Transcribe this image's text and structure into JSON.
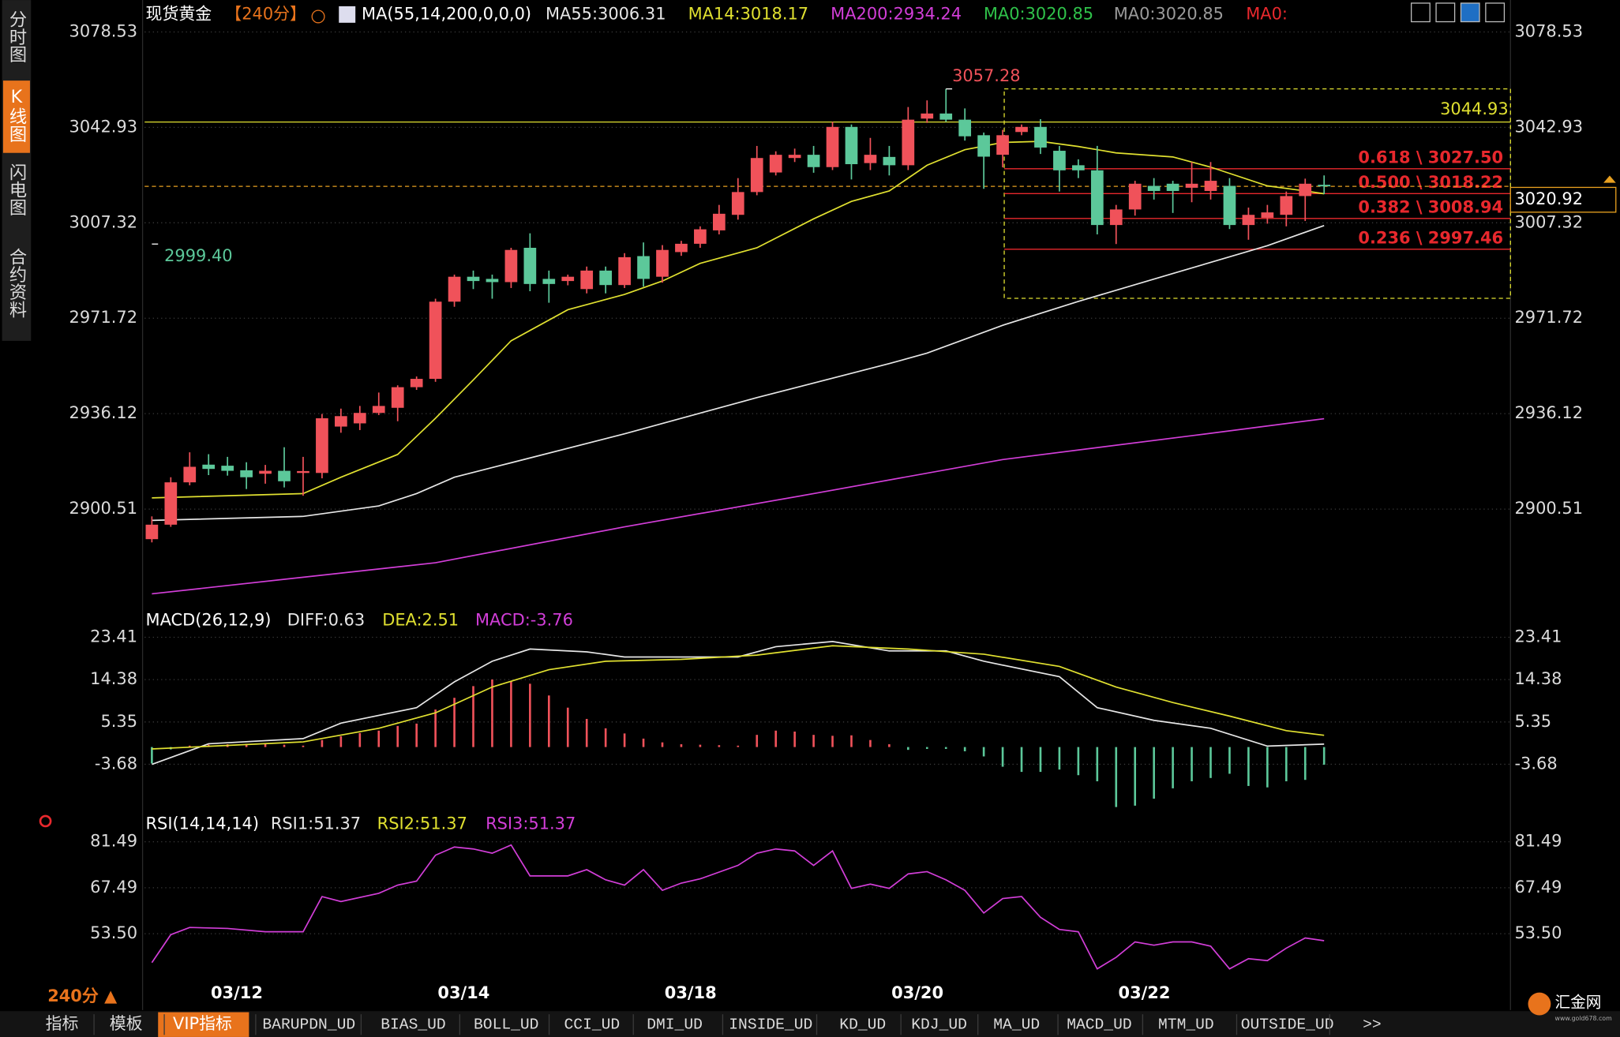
{
  "ui": {
    "sidebar": [
      "分时图",
      "K线图",
      "闪电图",
      "合约资料"
    ],
    "bottom_period": "240分 ▲",
    "tabs": [
      "指标",
      "模板",
      "VIP指标",
      "BARUPDN_UD",
      "BIAS_UD",
      "BOLL_UD",
      "CCI_UD",
      "DMI_UD",
      "INSIDE_UD",
      "KD_UD",
      "KDJ_UD",
      "MA_UD",
      "MACD_UD",
      "MTM_UD",
      "OUTSIDE_UD",
      ">>"
    ],
    "logo": "汇金网",
    "logo_url": "www.gold678.com"
  },
  "chart_data": [
    {
      "type": "candlestick",
      "title": "现货黄金",
      "period": "【240分】",
      "ma_label": "MA(55,14,200,0,0,0)",
      "up_color": "#f0525a",
      "down_color": "#5cc89a",
      "categories": [
        null,
        null,
        null,
        null,
        "03/12",
        null,
        null,
        null,
        null,
        null,
        null,
        null,
        null,
        null,
        null,
        null,
        "03/14",
        null,
        null,
        null,
        null,
        null,
        null,
        null,
        null,
        null,
        null,
        null,
        "03/18",
        null,
        null,
        null,
        null,
        null,
        null,
        null,
        null,
        null,
        null,
        null,
        "03/20",
        null,
        null,
        null,
        null,
        null,
        null,
        null,
        null,
        null,
        null,
        null,
        "03/22",
        null,
        null,
        null,
        null,
        null,
        null,
        null,
        null,
        null,
        null
      ],
      "open": [
        2889.3,
        2894.7,
        2910.5,
        2917.1,
        2916.7,
        2915,
        2913.7,
        2914.8,
        2914,
        2914,
        2931.3,
        2932.5,
        2936.4,
        2938.3,
        2946,
        2949.1,
        2977.9,
        2987.2,
        2986.4,
        2985.2,
        2998,
        2986.4,
        2985.6,
        2982.6,
        2989.5,
        2984.1,
        2994.9,
        2987.2,
        2996.4,
        2999.5,
        3004.5,
        3010.3,
        3018.8,
        3026.1,
        3031.5,
        3032.7,
        3028.1,
        3043.1,
        3029.6,
        3031.9,
        3028.8,
        3046.2,
        3048.1,
        3045.8,
        3040,
        3032.7,
        3041.2,
        3043.1,
        3034.2,
        3028.8,
        3026.9,
        3006.5,
        3012.3,
        3021.1,
        3021.9,
        3020.4,
        3019.2,
        3021.1,
        3006.5,
        3009.2,
        3010.3,
        3017.3,
        3021.5
      ],
      "high": [
        2897.8,
        2912.4,
        2921.7,
        2921,
        2920,
        2918,
        2917,
        2923.6,
        2920,
        2936,
        2938,
        2939,
        2944,
        2946.7,
        2950,
        2979,
        2988,
        2989.5,
        2988,
        2998,
        3003.4,
        2989.5,
        2988,
        2991,
        2991,
        2996,
        3000,
        2999,
        3000.6,
        3006,
        3014,
        3024,
        3036,
        3034,
        3035,
        3036,
        3045,
        3044,
        3039,
        3036,
        3050.5,
        3053,
        3057.28,
        3050,
        3041,
        3042,
        3044,
        3046,
        3036,
        3031,
        3036,
        3014,
        3023,
        3024,
        3023,
        3030,
        3030,
        3024,
        3013,
        3014,
        3019,
        3023.8,
        3025
      ],
      "low": [
        2888.1,
        2893.9,
        2909.4,
        2913.2,
        2913,
        2908,
        2910,
        2908.6,
        2905.5,
        2912,
        2929,
        2930,
        2935.6,
        2933.3,
        2945,
        2948,
        2976,
        2982.6,
        2979,
        2983,
        2981.8,
        2977.5,
        2984,
        2981,
        2981,
        2983,
        2983.5,
        2985,
        2995,
        2998,
        3003,
        3008.5,
        3017.6,
        3025,
        3030,
        3026,
        3027,
        3023.5,
        3027,
        3025,
        3027,
        3044.6,
        3045,
        3038,
        3020,
        3028,
        3040,
        3033,
        3019,
        3024,
        3003,
        2999.4,
        3010,
        3016,
        3011,
        3015,
        3016,
        3005,
        3001,
        3007,
        3006,
        3008,
        3018
      ],
      "close": [
        2894.7,
        2910.5,
        2916.3,
        2915.5,
        2914.8,
        2912.4,
        2914.8,
        2910.9,
        2914.7,
        2934.4,
        2935.2,
        2936.4,
        2939,
        2946,
        2949.1,
        2977.9,
        2987.2,
        2985.6,
        2985.2,
        2997.2,
        2984.5,
        2984.5,
        2987.2,
        2989.5,
        2984.1,
        2994.5,
        2986.4,
        2997.2,
        2999.5,
        3004.9,
        3010.7,
        3018.8,
        3031.5,
        3032.7,
        3032.7,
        3028.1,
        3043.1,
        3029.2,
        3032.7,
        3028.8,
        3045.8,
        3048.1,
        3045.8,
        3039.6,
        3032,
        3040,
        3043.1,
        3035.4,
        3026.9,
        3026.9,
        3006.5,
        3012.3,
        3021.9,
        3019.2,
        3019.2,
        3021.9,
        3023,
        3006.5,
        3010.3,
        3011.2,
        3017.3,
        3021.9,
        3020.92
      ],
      "lines": [
        {
          "legend": "MA55:3006.31",
          "color": "#e6e6e6",
          "x": [
            0,
            8,
            12,
            14,
            16,
            19,
            25,
            32,
            39,
            41,
            45,
            49,
            54,
            59,
            62
          ],
          "values": [
            2896.3,
            2897.8,
            2901.7,
            2906.3,
            2912.4,
            2917.8,
            2928.6,
            2942.1,
            2954.8,
            2958.7,
            2969.1,
            2978,
            2988.4,
            2998.8,
            3006.31
          ]
        },
        {
          "legend": "MA14:3018.17",
          "color": "#e0e030",
          "x": [
            0,
            8,
            10,
            13,
            15,
            17,
            19,
            22,
            25,
            27,
            29,
            32,
            35,
            37,
            39,
            41,
            43,
            45,
            47,
            49,
            51,
            54,
            56,
            59,
            61,
            62
          ],
          "values": [
            2904.7,
            2906.3,
            2912.4,
            2920.9,
            2934.4,
            2948.7,
            2963.3,
            2974.9,
            2980.6,
            2985.6,
            2992.2,
            2998,
            3008.8,
            3015.3,
            3019.2,
            3028.8,
            3034.6,
            3037.3,
            3037.7,
            3035.8,
            3033.4,
            3031.9,
            3028.1,
            3021.1,
            3019.2,
            3018.17
          ]
        },
        {
          "legend": "MA200:2934.24",
          "color": "#d23ed8",
          "x": [
            0,
            15,
            25,
            35,
            45,
            55,
            62
          ],
          "values": [
            2868.9,
            2880.5,
            2893.9,
            2906.3,
            2919,
            2927.9,
            2934.24
          ]
        }
      ],
      "extra_legend": [
        {
          "label": "MA0:3020.85",
          "color": "#2fc24a"
        },
        {
          "label": "MA0:3020.85",
          "color": "#9a9a9a"
        },
        {
          "label": "MA0:",
          "color": "#e8282d"
        }
      ],
      "ylim": [
        2863.1,
        3080.8
      ],
      "yticks": [
        2900.51,
        2936.12,
        2971.72,
        3007.32,
        3042.93,
        3078.53
      ],
      "grid": true,
      "extremes": {
        "high": {
          "value": 3057.28,
          "label": "3057.28"
        },
        "low": {
          "value": 2999.4,
          "label": "2999.40"
        }
      },
      "hline": {
        "value": 3044.93,
        "color": "#e0e030"
      },
      "last_price": {
        "value": 3020.92,
        "color": "#e8a020"
      },
      "fib": {
        "lim": [
          2979.16,
          3057.28
        ],
        "color": "#e0e030",
        "line_color": "#e8282d",
        "levels": [
          {
            "value": 3027.5,
            "label": "0.618 \\ 3027.50"
          },
          {
            "value": 3018.22,
            "label": "0.500 \\ 3018.22"
          },
          {
            "value": 3008.94,
            "label": "0.382 \\ 3008.94"
          },
          {
            "value": 2997.46,
            "label": "0.236 \\ 2997.46"
          }
        ]
      }
    },
    {
      "type": "macd",
      "title": "MACD(26,12,9)",
      "up_color": "#f0525a",
      "down_color": "#5cc89a",
      "bars": {
        "legend": "MACD:-3.76",
        "color": "#d23ed8",
        "values": [
          -3.5,
          -0.5,
          0.3,
          0.5,
          0.6,
          0.7,
          0.7,
          0.5,
          0.3,
          1.5,
          2.3,
          3,
          3.5,
          4.5,
          5,
          8,
          10.5,
          13,
          14.4,
          14,
          13.5,
          11,
          8.4,
          6,
          4,
          2.9,
          1.8,
          1,
          0.6,
          0.5,
          0.4,
          0.3,
          2.6,
          3.5,
          3.3,
          2.6,
          2.4,
          2.5,
          1.5,
          0.6,
          -0.6,
          -0.4,
          -0.4,
          -0.9,
          -2,
          -4.2,
          -5.3,
          -5.3,
          -4.8,
          -6,
          -7.3,
          -12.8,
          -12.5,
          -11,
          -8.8,
          -7.3,
          -6.6,
          -5.7,
          -8.3,
          -8.6,
          -7.3,
          -7,
          -3.76
        ]
      },
      "lines": [
        {
          "legend": "DIFF:0.63",
          "color": "#e6e6e6",
          "x": [
            0,
            3,
            8,
            10,
            14,
            16,
            18,
            20,
            23,
            25,
            31,
            33,
            36,
            39,
            42,
            44,
            48,
            50,
            53,
            56,
            59,
            62
          ],
          "values": [
            -3.7,
            0.7,
            1.8,
            5.1,
            8.4,
            13.9,
            18.3,
            20.9,
            20.3,
            19.2,
            19.2,
            21.4,
            22.5,
            20.5,
            20.5,
            18.3,
            15,
            8.4,
            5.7,
            4,
            0.2,
            0.63
          ]
        },
        {
          "legend": "DEA:2.51",
          "color": "#e0e030",
          "x": [
            0,
            8,
            12,
            15,
            18,
            21,
            24,
            28,
            32,
            36,
            40,
            44,
            48,
            51,
            54,
            57,
            60,
            62
          ],
          "values": [
            -0.4,
            1.1,
            4,
            7.3,
            12.8,
            16.5,
            18.3,
            18.7,
            19.6,
            21.6,
            20.9,
            19.8,
            17.2,
            12.8,
            9.5,
            6.6,
            3.5,
            2.51
          ]
        }
      ],
      "ylim": [
        -13.59,
        24.51
      ],
      "yticks": [
        -3.68,
        5.35,
        14.38,
        23.41
      ],
      "grid": true
    },
    {
      "type": "line",
      "title": "RSI(14,14,14)",
      "extra_legend": [
        {
          "label": "RSI1:51.37",
          "color": "#e6e6e6"
        },
        {
          "label": "RSI2:51.37",
          "color": "#e0e030"
        }
      ],
      "lines": [
        {
          "legend": "RSI3:51.37",
          "color": "#d23ed8",
          "x": [
            0,
            1,
            2,
            4,
            6,
            8,
            9,
            10,
            12,
            13,
            14,
            15,
            16,
            17,
            18,
            19,
            20,
            22,
            23,
            24,
            25,
            26,
            27,
            28,
            29,
            31,
            32,
            33,
            34,
            35,
            36,
            37,
            38,
            39,
            40,
            41,
            42,
            43,
            44,
            45,
            46,
            47,
            48,
            49,
            50,
            51,
            52,
            53,
            54,
            55,
            56,
            57,
            58,
            59,
            60,
            61,
            62
          ],
          "values": [
            44.7,
            53.2,
            55.4,
            55.1,
            54.1,
            54.1,
            64.8,
            63.3,
            65.8,
            68.3,
            69.5,
            77.4,
            79.9,
            79.3,
            78,
            80.5,
            71.1,
            71.1,
            73,
            69.9,
            68.3,
            73,
            66.7,
            68.9,
            70.2,
            74.3,
            78,
            79.3,
            78.7,
            74.3,
            78.7,
            67.3,
            68.6,
            67.3,
            71.7,
            72.4,
            69.9,
            66.7,
            59.8,
            64.2,
            64.8,
            58.5,
            54.8,
            54.1,
            42.8,
            46.3,
            51,
            50,
            51,
            51,
            49.7,
            42.8,
            45.9,
            45.3,
            49.1,
            52.2,
            51.37
          ]
        }
      ],
      "ylim": [
        39.67,
        83.69
      ],
      "yticks": [
        {
          "value": 53.5,
          "label": "53.50"
        },
        67.49,
        81.49
      ],
      "grid": true
    }
  ]
}
